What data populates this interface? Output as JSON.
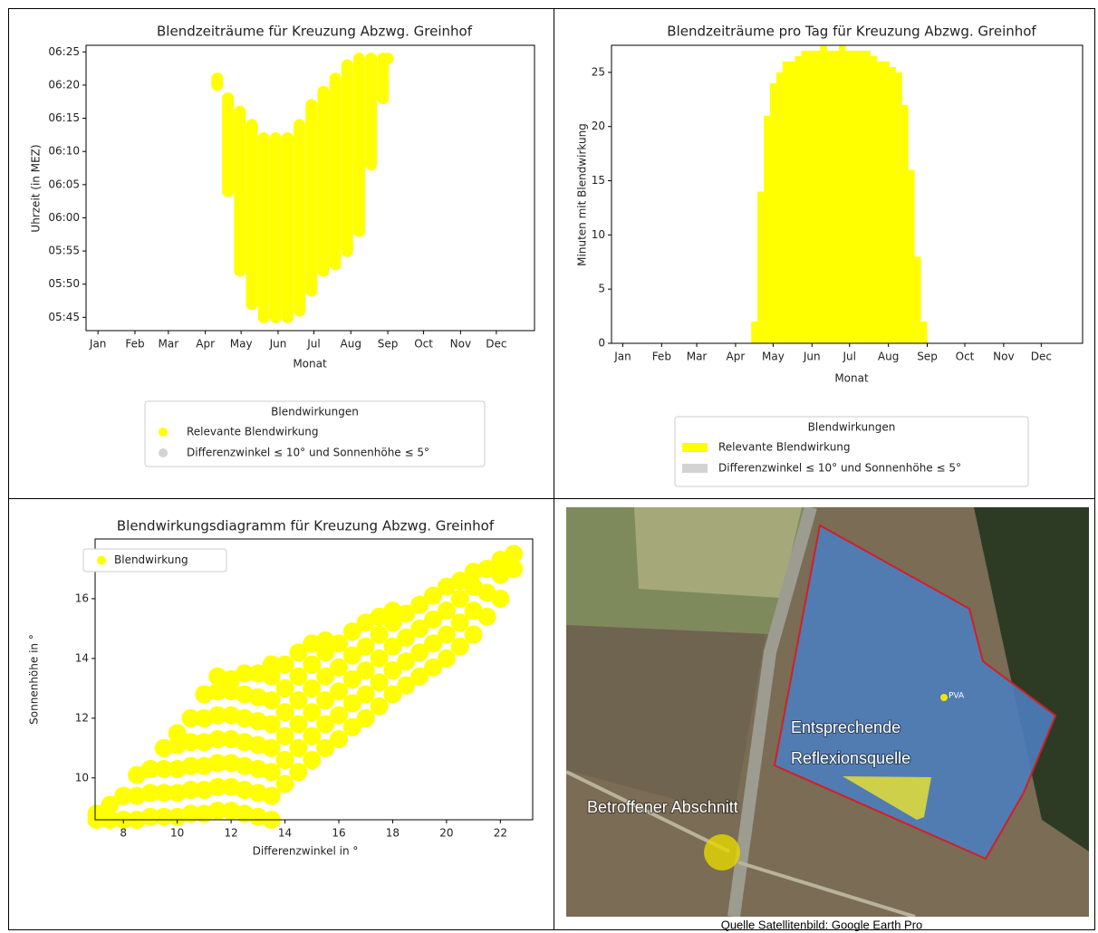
{
  "chart_data": [
    {
      "type": "range",
      "title": "Blendzeiträume für Kreuzung Abzwg. Greinhof",
      "xlabel": "Monat",
      "ylabel": "Uhrzeit (in MEZ)",
      "xlim": [
        -9,
        367
      ],
      "ylim": [
        343,
        386
      ],
      "xticks": [
        {
          "value": 1,
          "label": "Jan"
        },
        {
          "value": 32,
          "label": "Feb"
        },
        {
          "value": 60,
          "label": "Mar"
        },
        {
          "value": 91,
          "label": "Apr"
        },
        {
          "value": 121,
          "label": "May"
        },
        {
          "value": 152,
          "label": "Jun"
        },
        {
          "value": 182,
          "label": "Jul"
        },
        {
          "value": 213,
          "label": "Aug"
        },
        {
          "value": 244,
          "label": "Sep"
        },
        {
          "value": 274,
          "label": "Oct"
        },
        {
          "value": 305,
          "label": "Nov"
        },
        {
          "value": 335,
          "label": "Dec"
        }
      ],
      "yticks": [
        {
          "value": 345,
          "label": "05:45"
        },
        {
          "value": 350,
          "label": "05:50"
        },
        {
          "value": 355,
          "label": "05:55"
        },
        {
          "value": 360,
          "label": "06:00"
        },
        {
          "value": 365,
          "label": "06:05"
        },
        {
          "value": 370,
          "label": "06:10"
        },
        {
          "value": 375,
          "label": "06:15"
        },
        {
          "value": 380,
          "label": "06:20"
        },
        {
          "value": 385,
          "label": "06:25"
        }
      ],
      "legend_title": "Blendwirkungen",
      "series": [
        {
          "name": "Relevante Blendwirkung",
          "color": "#ffff00",
          "x": [
            101,
            110,
            120,
            130,
            140,
            150,
            160,
            170,
            180,
            190,
            200,
            210,
            220,
            230,
            240,
            244
          ],
          "low": [
            380,
            364,
            352,
            347,
            345,
            345,
            345,
            346,
            349,
            352,
            353,
            355,
            358,
            368,
            378,
            384
          ],
          "high": [
            381,
            378,
            376,
            374,
            372,
            372,
            372,
            374,
            377,
            379,
            381,
            383,
            384,
            384,
            384,
            384
          ]
        },
        {
          "name": "Differenzwinkel ≤ 10° und Sonnenhöhe ≤ 5°",
          "color": "#d3d3d3"
        }
      ]
    },
    {
      "type": "bar",
      "title": "Blendzeiträume pro Tag für Kreuzung Abzwg. Greinhof",
      "xlabel": "Monat",
      "ylabel": "Minuten mit Blendwirkung",
      "xlim": [
        -8,
        368
      ],
      "ylim": [
        0,
        27.5
      ],
      "xticks": [
        {
          "value": 1,
          "label": "Jan"
        },
        {
          "value": 32,
          "label": "Feb"
        },
        {
          "value": 60,
          "label": "Mar"
        },
        {
          "value": 91,
          "label": "Apr"
        },
        {
          "value": 121,
          "label": "May"
        },
        {
          "value": 152,
          "label": "Jun"
        },
        {
          "value": 182,
          "label": "Jul"
        },
        {
          "value": 213,
          "label": "Aug"
        },
        {
          "value": 244,
          "label": "Sep"
        },
        {
          "value": 274,
          "label": "Oct"
        },
        {
          "value": 305,
          "label": "Nov"
        },
        {
          "value": 335,
          "label": "Dec"
        }
      ],
      "yticks": [
        0,
        5,
        10,
        15,
        20,
        25
      ],
      "legend_title": "Blendwirkungen",
      "series": [
        {
          "name": "Relevante Blendwirkung",
          "color": "#ffff00",
          "x": [
            106,
            111,
            116,
            121,
            126,
            131,
            136,
            141,
            146,
            151,
            156,
            161,
            166,
            171,
            176,
            181,
            186,
            191,
            196,
            201,
            206,
            211,
            216,
            221,
            226,
            231,
            236,
            241
          ],
          "values": [
            2,
            14,
            21,
            24,
            25,
            26,
            26,
            26.5,
            27,
            27,
            27,
            27.5,
            27,
            27,
            27.5,
            27,
            27,
            27,
            27,
            26.5,
            26,
            26,
            25.5,
            25,
            22,
            16,
            8,
            2
          ]
        },
        {
          "name": "Differenzwinkel ≤ 10° und Sonnenhöhe ≤ 5°",
          "color": "#d3d3d3"
        }
      ]
    },
    {
      "type": "scatter",
      "title": "Blendwirkungsdiagramm für Kreuzung Abzwg. Greinhof",
      "xlabel": "Differenzwinkel in °",
      "ylabel": "Sonnenhöhe in °",
      "xlim": [
        6.95,
        23.2
      ],
      "ylim": [
        8.6,
        18.0
      ],
      "xticks": [
        8,
        10,
        12,
        14,
        16,
        18,
        20,
        22
      ],
      "yticks": [
        10,
        12,
        14,
        16
      ],
      "series": [
        {
          "name": "Blendwirkung",
          "color": "#ffff00",
          "x": [
            7.0,
            7.0,
            7.5,
            7.5,
            8.0,
            8.0,
            8.5,
            8.5,
            8.5,
            9.0,
            9.0,
            9.0,
            9.5,
            9.5,
            9.5,
            9.5,
            10.0,
            10.0,
            10.0,
            10.0,
            10.0,
            10.5,
            10.5,
            10.5,
            10.5,
            10.5,
            11.0,
            11.0,
            11.0,
            11.0,
            11.0,
            11.0,
            11.5,
            11.5,
            11.5,
            11.5,
            11.5,
            11.5,
            11.5,
            12.0,
            12.0,
            12.0,
            12.0,
            12.0,
            12.0,
            12.0,
            12.5,
            12.5,
            12.5,
            12.5,
            12.5,
            12.5,
            12.5,
            13.0,
            13.0,
            13.0,
            13.0,
            13.0,
            13.0,
            13.0,
            13.5,
            13.5,
            13.5,
            13.5,
            13.5,
            13.5,
            13.5,
            13.5,
            14.0,
            14.0,
            14.0,
            14.0,
            14.0,
            14.0,
            14.5,
            14.5,
            14.5,
            14.5,
            14.5,
            14.5,
            15.0,
            15.0,
            15.0,
            15.0,
            15.0,
            15.0,
            15.5,
            15.5,
            15.5,
            15.5,
            15.5,
            15.5,
            16.0,
            16.0,
            16.0,
            16.0,
            16.0,
            16.5,
            16.5,
            16.5,
            16.5,
            16.5,
            17.0,
            17.0,
            17.0,
            17.0,
            17.0,
            17.5,
            17.5,
            17.5,
            17.5,
            17.5,
            18.0,
            18.0,
            18.0,
            18.0,
            18.0,
            18.5,
            18.5,
            18.5,
            18.5,
            19.0,
            19.0,
            19.0,
            19.0,
            19.5,
            19.5,
            19.5,
            19.5,
            20.0,
            20.0,
            20.0,
            20.0,
            20.5,
            20.5,
            20.5,
            20.5,
            21.0,
            21.0,
            21.0,
            21.0,
            21.5,
            21.5,
            21.5,
            22.0,
            22.0,
            22.0,
            22.5,
            22.5
          ],
          "values": [
            8.6,
            8.8,
            8.6,
            9.1,
            8.6,
            9.4,
            8.6,
            9.4,
            10.1,
            8.7,
            9.5,
            10.3,
            8.7,
            9.5,
            10.3,
            11.0,
            8.7,
            9.5,
            10.3,
            11.1,
            11.5,
            8.8,
            9.6,
            10.4,
            11.2,
            12.0,
            8.8,
            9.6,
            10.4,
            11.2,
            12.0,
            12.8,
            8.9,
            9.7,
            10.5,
            11.3,
            12.1,
            12.9,
            13.4,
            8.9,
            9.7,
            10.5,
            11.3,
            12.1,
            12.9,
            13.3,
            8.8,
            9.6,
            10.4,
            11.2,
            12.0,
            12.8,
            13.5,
            8.7,
            9.5,
            10.3,
            11.1,
            11.9,
            12.7,
            13.5,
            8.6,
            9.4,
            10.2,
            11.0,
            11.8,
            12.6,
            13.4,
            13.8,
            9.8,
            10.6,
            11.4,
            12.2,
            13.0,
            13.8,
            10.2,
            11.0,
            11.8,
            12.6,
            13.4,
            14.2,
            10.6,
            11.4,
            12.2,
            13.0,
            13.8,
            14.5,
            11.0,
            11.8,
            12.6,
            13.4,
            14.2,
            14.6,
            11.3,
            12.1,
            12.9,
            13.7,
            14.5,
            11.7,
            12.5,
            13.3,
            14.1,
            14.9,
            12.0,
            12.8,
            13.6,
            14.4,
            15.2,
            12.4,
            13.2,
            14.0,
            14.8,
            15.4,
            12.8,
            13.6,
            14.4,
            15.2,
            15.6,
            13.1,
            13.9,
            14.7,
            15.5,
            13.4,
            14.2,
            15.0,
            15.8,
            13.7,
            14.5,
            15.3,
            16.1,
            14.0,
            14.8,
            15.6,
            16.4,
            14.4,
            15.2,
            16.0,
            16.6,
            14.8,
            15.6,
            16.4,
            16.9,
            15.4,
            16.2,
            17.0,
            16.0,
            16.8,
            17.3,
            17.0,
            17.5
          ]
        }
      ]
    }
  ],
  "map": {
    "labels": [
      "Entsprechende",
      "Reflexionsquelle",
      "Betroffener Abschnitt",
      "PVA"
    ],
    "caption": "Quelle Satellitenbild: Google Earth Pro"
  }
}
